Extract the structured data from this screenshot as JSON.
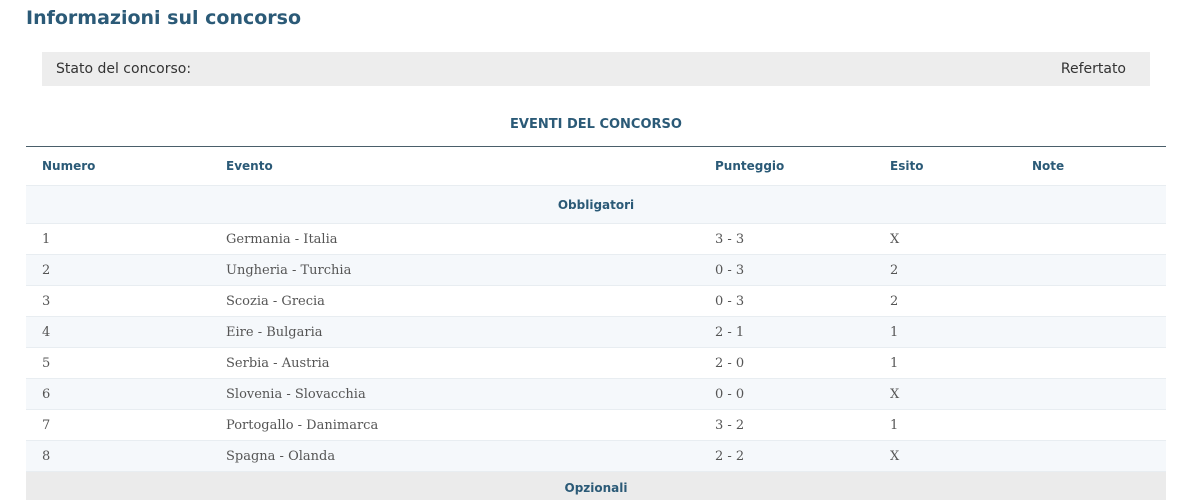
{
  "title": "Informazioni sul concorso",
  "status": {
    "label": "Stato del concorso:",
    "value": "Refertato"
  },
  "section_title": "EVENTI DEL CONCORSO",
  "columns": [
    "Numero",
    "Evento",
    "Punteggio",
    "Esito",
    "Note"
  ],
  "groups": {
    "mandatory": "Obbligatori",
    "optional": "Opzionali"
  },
  "rows": [
    {
      "numero": "1",
      "evento": "Germania - Italia",
      "punteggio": "3 - 3",
      "esito": "X",
      "note": ""
    },
    {
      "numero": "2",
      "evento": "Ungheria - Turchia",
      "punteggio": "0 - 3",
      "esito": "2",
      "note": ""
    },
    {
      "numero": "3",
      "evento": "Scozia - Grecia",
      "punteggio": "0 - 3",
      "esito": "2",
      "note": ""
    },
    {
      "numero": "4",
      "evento": "Eire - Bulgaria",
      "punteggio": "2 - 1",
      "esito": "1",
      "note": ""
    },
    {
      "numero": "5",
      "evento": "Serbia - Austria",
      "punteggio": "2 - 0",
      "esito": "1",
      "note": ""
    },
    {
      "numero": "6",
      "evento": "Slovenia - Slovacchia",
      "punteggio": "0 - 0",
      "esito": "X",
      "note": ""
    },
    {
      "numero": "7",
      "evento": "Portogallo - Danimarca",
      "punteggio": "3 - 2",
      "esito": "1",
      "note": ""
    },
    {
      "numero": "8",
      "evento": "Spagna - Olanda",
      "punteggio": "2 - 2",
      "esito": "X",
      "note": ""
    }
  ]
}
